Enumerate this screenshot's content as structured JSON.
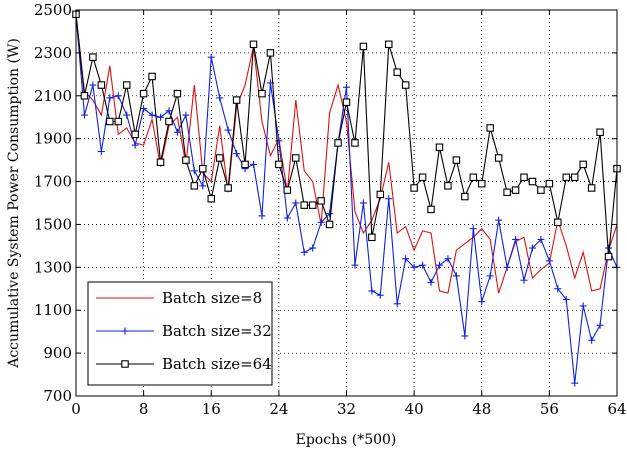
{
  "chart_data": {
    "type": "line",
    "xlabel": "Epochs (*500)",
    "ylabel": "Accumulative System Power Consumption (W)",
    "xlim": [
      0,
      64
    ],
    "ylim": [
      700,
      2500
    ],
    "xticks": [
      0,
      8,
      16,
      24,
      32,
      40,
      48,
      56,
      64
    ],
    "yticks": [
      700,
      900,
      1100,
      1300,
      1500,
      1700,
      1900,
      2100,
      2300,
      2500
    ],
    "grid": true,
    "legend_position": "bottom-left",
    "x": [
      0,
      1,
      2,
      3,
      4,
      5,
      6,
      7,
      8,
      9,
      10,
      11,
      12,
      13,
      14,
      15,
      16,
      17,
      18,
      19,
      20,
      21,
      22,
      23,
      24,
      25,
      26,
      27,
      28,
      29,
      30,
      31,
      32,
      33,
      34,
      35,
      36,
      37,
      38,
      39,
      40,
      41,
      42,
      43,
      44,
      45,
      46,
      47,
      48,
      49,
      50,
      51,
      52,
      53,
      54,
      55,
      56,
      57,
      58,
      59,
      60,
      61,
      62,
      63,
      64
    ],
    "series": [
      {
        "name": "Batch size=8",
        "color": "#e01010",
        "marker": "none",
        "values": [
          2480,
          2120,
          2080,
          2010,
          2240,
          1920,
          1950,
          1880,
          1870,
          1990,
          1770,
          1960,
          2000,
          1780,
          2150,
          1740,
          1700,
          1960,
          1650,
          2050,
          2150,
          2330,
          1980,
          1820,
          1900,
          1650,
          2080,
          1750,
          1700,
          1500,
          2020,
          2150,
          1980,
          1560,
          1460,
          1520,
          1620,
          1790,
          1460,
          1490,
          1380,
          1470,
          1460,
          1190,
          1180,
          1380,
          1410,
          1440,
          1480,
          1430,
          1180,
          1300,
          1420,
          1440,
          1250,
          1290,
          1320,
          1520,
          1400,
          1250,
          1370,
          1190,
          1200,
          1380,
          1500
        ]
      },
      {
        "name": "Batch size=32",
        "color": "#1020e0",
        "marker": "plus",
        "values": [
          2480,
          2010,
          2150,
          1840,
          2090,
          2100,
          2010,
          1870,
          2040,
          2010,
          2000,
          2030,
          1930,
          2010,
          1750,
          1680,
          2280,
          2090,
          1940,
          1830,
          1760,
          1780,
          1540,
          2160,
          1890,
          1530,
          1600,
          1370,
          1390,
          1510,
          1550,
          1880,
          2140,
          1310,
          1600,
          1190,
          1170,
          1620,
          1130,
          1340,
          1300,
          1310,
          1230,
          1310,
          1340,
          1260,
          980,
          1480,
          1140,
          1260,
          1520,
          1300,
          1430,
          1240,
          1390,
          1430,
          1330,
          1200,
          1150,
          760,
          1120,
          960,
          1030,
          1390,
          1300
        ]
      },
      {
        "name": "Batch size=64",
        "color": "#000000",
        "marker": "square",
        "values": [
          2480,
          2100,
          2280,
          2150,
          1980,
          1980,
          2150,
          1920,
          2110,
          2190,
          1790,
          1980,
          2110,
          1800,
          1680,
          1760,
          1620,
          1810,
          1670,
          2080,
          1780,
          2340,
          2110,
          2300,
          1780,
          1660,
          1810,
          1590,
          1590,
          1610,
          1500,
          1880,
          2070,
          1880,
          2330,
          1440,
          1640,
          2340,
          2210,
          2150,
          1670,
          1720,
          1570,
          1860,
          1680,
          1800,
          1630,
          1720,
          1690,
          1950,
          1810,
          1650,
          1660,
          1720,
          1700,
          1660,
          1690,
          1510,
          1720,
          1720,
          1780,
          1670,
          1930,
          1350,
          1760
        ]
      }
    ]
  }
}
